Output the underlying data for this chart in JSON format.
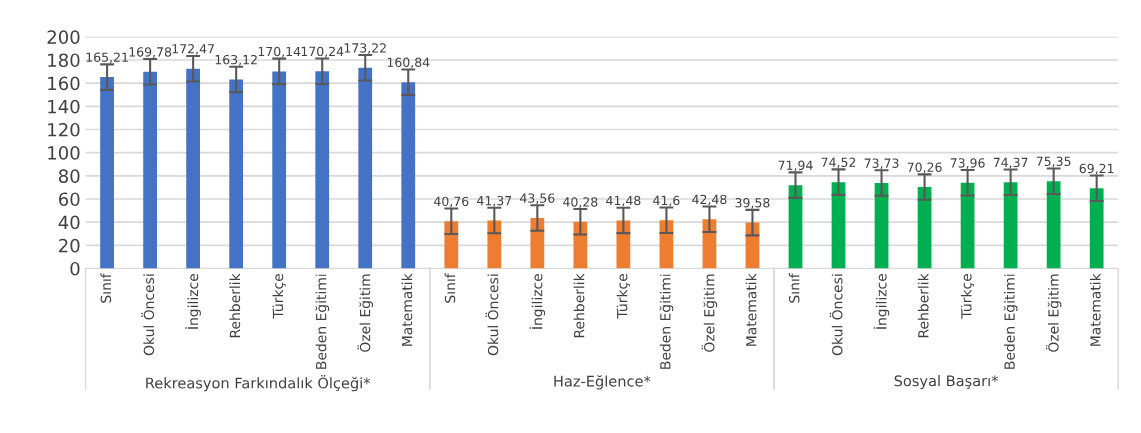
{
  "chart_data": {
    "type": "bar",
    "categories": [
      "Sınıf",
      "Okul Öncesi",
      "İngilizce",
      "Rehberlik",
      "Türkçe",
      "Beden Eğitimi",
      "Özel Eğitim",
      "Matematik",
      "Sınıf",
      "Okul Öncesi",
      "İngilizce",
      "Rehberlik",
      "Türkçe",
      "Beden Eğitimi",
      "Özel Eğitim",
      "Matematik",
      "Sınıf",
      "Okul Öncesi",
      "İngilizce",
      "Rehberlik",
      "Türkçe",
      "Beden Eğitimi",
      "Özel Eğitim",
      "Matematik"
    ],
    "series": [
      {
        "color": "#4472c4",
        "values": [
          165.21,
          169.78,
          172.47,
          163.12,
          170.14,
          170.24,
          173.22,
          160.84,
          null,
          null,
          null,
          null,
          null,
          null,
          null,
          null,
          null,
          null,
          null,
          null,
          null,
          null,
          null,
          null
        ],
        "errors": [
          11,
          11,
          11,
          11,
          11,
          11,
          11,
          11,
          null,
          null,
          null,
          null,
          null,
          null,
          null,
          null,
          null,
          null,
          null,
          null,
          null,
          null,
          null,
          null
        ],
        "value_labels": [
          "165,21",
          "169,78",
          "172,47",
          "163,12",
          "170,14",
          "170,24",
          "173,22",
          "160,84",
          null,
          null,
          null,
          null,
          null,
          null,
          null,
          null,
          null,
          null,
          null,
          null,
          null,
          null,
          null,
          null
        ]
      },
      {
        "color": "#ed7d31",
        "values": [
          null,
          null,
          null,
          null,
          null,
          null,
          null,
          null,
          40.76,
          41.37,
          43.56,
          40.28,
          41.48,
          41.6,
          42.48,
          39.58,
          null,
          null,
          null,
          null,
          null,
          null,
          null,
          null
        ],
        "errors": [
          null,
          null,
          null,
          null,
          null,
          null,
          null,
          null,
          11,
          11,
          11,
          11,
          11,
          11,
          11,
          11,
          null,
          null,
          null,
          null,
          null,
          null,
          null,
          null
        ],
        "value_labels": [
          null,
          null,
          null,
          null,
          null,
          null,
          null,
          null,
          "40,76",
          "41,37",
          "43,56",
          "40,28",
          "41,48",
          "41,6",
          "42,48",
          "39,58",
          null,
          null,
          null,
          null,
          null,
          null,
          null,
          null
        ]
      },
      {
        "color": "#00b050",
        "values": [
          null,
          null,
          null,
          null,
          null,
          null,
          null,
          null,
          null,
          null,
          null,
          null,
          null,
          null,
          null,
          null,
          71.94,
          74.52,
          73.73,
          70.26,
          73.96,
          74.37,
          75.35,
          69.21
        ],
        "errors": [
          null,
          null,
          null,
          null,
          null,
          null,
          null,
          null,
          null,
          null,
          null,
          null,
          null,
          null,
          null,
          null,
          11,
          11,
          11,
          11,
          11,
          11,
          11,
          11
        ],
        "value_labels": [
          null,
          null,
          null,
          null,
          null,
          null,
          null,
          null,
          null,
          null,
          null,
          null,
          null,
          null,
          null,
          null,
          "71,94",
          "74,52",
          "73,73",
          "70,26",
          "73,96",
          "74,37",
          "75,35",
          "69,21"
        ]
      }
    ],
    "ylim": [
      0,
      200
    ],
    "yticks": [
      0,
      20,
      40,
      60,
      80,
      100,
      120,
      140,
      160,
      180,
      200
    ],
    "grid": "y",
    "annotations": [
      "Rekreasyon Farkındalık Ölçeği*",
      "Haz-Eğlence*",
      "Sosyal Başarı*"
    ]
  }
}
